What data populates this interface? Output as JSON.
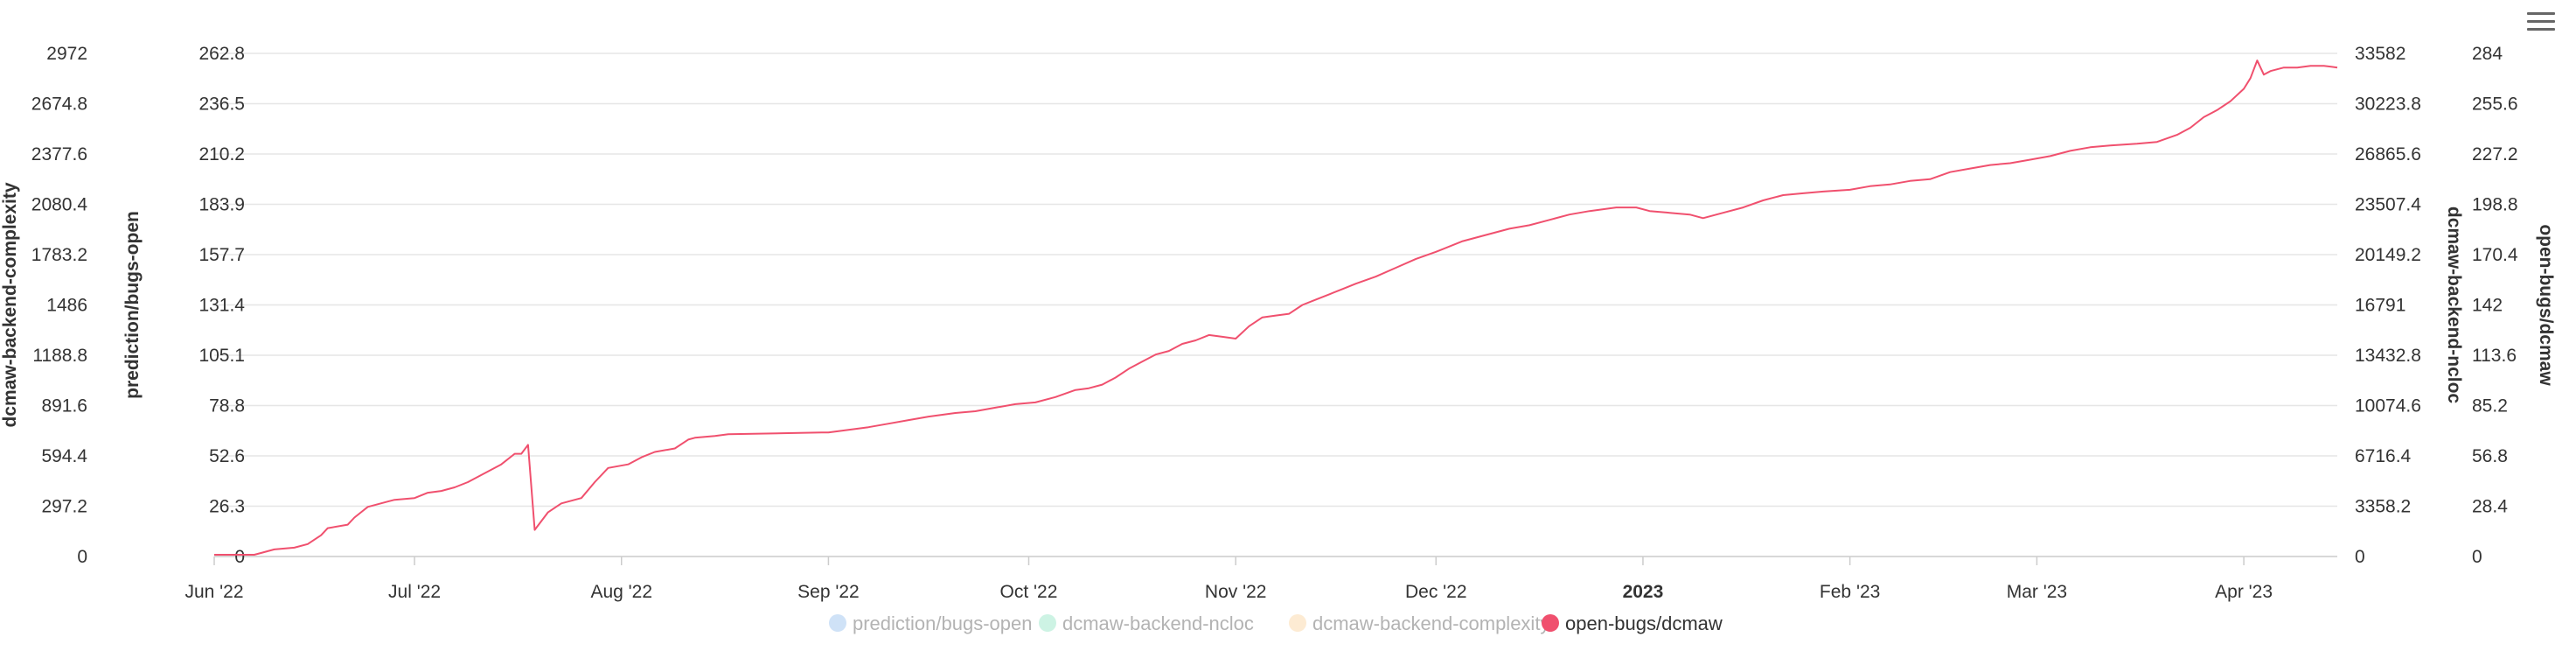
{
  "menu": {
    "icon": "hamburger-menu-icon"
  },
  "chart_data": {
    "type": "line",
    "title": "",
    "x_ticks": [
      "Jun '22",
      "Jul '22",
      "Aug '22",
      "Sep '22",
      "Oct '22",
      "Nov '22",
      "Dec '22",
      "2023",
      "Feb '23",
      "Mar '23",
      "Apr '23"
    ],
    "x_tick_bold": [
      false,
      false,
      false,
      false,
      false,
      false,
      false,
      true,
      false,
      false,
      false
    ],
    "xlim": [
      "2022-06-01",
      "2023-04-15"
    ],
    "grid": true,
    "legend_position": "bottom-center",
    "y_axes": [
      {
        "title": "dcmaw-backend-complexity",
        "ticks": [
          "0",
          "297.2",
          "594.4",
          "891.6",
          "1188.8",
          "1486",
          "1783.2",
          "2080.4",
          "2377.6",
          "2674.8",
          "2972"
        ],
        "ylim": [
          0,
          2972
        ],
        "side": "left"
      },
      {
        "title": "prediction/bugs-open",
        "ticks": [
          "0",
          "26.3",
          "52.6",
          "78.8",
          "105.1",
          "131.4",
          "157.7",
          "183.9",
          "210.2",
          "236.5",
          "262.8"
        ],
        "ylim": [
          0,
          262.8
        ],
        "side": "left"
      },
      {
        "title": "dcmaw-backend-ncloc",
        "ticks": [
          "0",
          "3358.2",
          "6716.4",
          "10074.6",
          "13432.8",
          "16791",
          "20149.2",
          "23507.4",
          "26865.6",
          "30223.8",
          "33582"
        ],
        "ylim": [
          0,
          33582
        ],
        "side": "right"
      },
      {
        "title": "open-bugs/dcmaw",
        "ticks": [
          "0",
          "28.4",
          "56.8",
          "85.2",
          "113.6",
          "142",
          "170.4",
          "198.8",
          "227.2",
          "255.6",
          "284"
        ],
        "ylim": [
          0,
          284
        ],
        "side": "right"
      }
    ],
    "series": [
      {
        "name": "prediction/bugs-open",
        "color": "#cfe2f7",
        "visible": false,
        "values": []
      },
      {
        "name": "dcmaw-backend-ncloc",
        "color": "#cdf3e4",
        "visible": false,
        "values": []
      },
      {
        "name": "dcmaw-backend-complexity",
        "color": "#fdebd3",
        "visible": false,
        "values": []
      },
      {
        "name": "open-bugs/dcmaw",
        "color": "#f0506e",
        "visible": true,
        "y_axis": 3,
        "values": [
          [
            "2022-06-01",
            1
          ],
          [
            "2022-06-07",
            1
          ],
          [
            "2022-06-08",
            2
          ],
          [
            "2022-06-10",
            4
          ],
          [
            "2022-06-13",
            5
          ],
          [
            "2022-06-15",
            7
          ],
          [
            "2022-06-17",
            12
          ],
          [
            "2022-06-18",
            16
          ],
          [
            "2022-06-21",
            18
          ],
          [
            "2022-06-22",
            22
          ],
          [
            "2022-06-23",
            25
          ],
          [
            "2022-06-24",
            28
          ],
          [
            "2022-06-27",
            31
          ],
          [
            "2022-06-28",
            32
          ],
          [
            "2022-07-01",
            33
          ],
          [
            "2022-07-03",
            36
          ],
          [
            "2022-07-05",
            37
          ],
          [
            "2022-07-07",
            39
          ],
          [
            "2022-07-09",
            42
          ],
          [
            "2022-07-11",
            46
          ],
          [
            "2022-07-14",
            52
          ],
          [
            "2022-07-16",
            58
          ],
          [
            "2022-07-17",
            58
          ],
          [
            "2022-07-18",
            63
          ],
          [
            "2022-07-19",
            15
          ],
          [
            "2022-07-21",
            25
          ],
          [
            "2022-07-23",
            30
          ],
          [
            "2022-07-26",
            33
          ],
          [
            "2022-07-28",
            42
          ],
          [
            "2022-07-30",
            50
          ],
          [
            "2022-08-02",
            52
          ],
          [
            "2022-08-04",
            56
          ],
          [
            "2022-08-06",
            59
          ],
          [
            "2022-08-09",
            61
          ],
          [
            "2022-08-11",
            66
          ],
          [
            "2022-08-12",
            67
          ],
          [
            "2022-08-15",
            68
          ],
          [
            "2022-08-17",
            69
          ],
          [
            "2022-08-31",
            70
          ],
          [
            "2022-09-01",
            70
          ],
          [
            "2022-09-03",
            71
          ],
          [
            "2022-09-07",
            73
          ],
          [
            "2022-09-10",
            75
          ],
          [
            "2022-09-13",
            77
          ],
          [
            "2022-09-16",
            79
          ],
          [
            "2022-09-20",
            81
          ],
          [
            "2022-09-23",
            82
          ],
          [
            "2022-09-26",
            84
          ],
          [
            "2022-09-29",
            86
          ],
          [
            "2022-10-02",
            87
          ],
          [
            "2022-10-05",
            90
          ],
          [
            "2022-10-08",
            94
          ],
          [
            "2022-10-10",
            95
          ],
          [
            "2022-10-12",
            97
          ],
          [
            "2022-10-14",
            101
          ],
          [
            "2022-10-16",
            106
          ],
          [
            "2022-10-18",
            110
          ],
          [
            "2022-10-20",
            114
          ],
          [
            "2022-10-22",
            116
          ],
          [
            "2022-10-24",
            120
          ],
          [
            "2022-10-26",
            122
          ],
          [
            "2022-10-28",
            125
          ],
          [
            "2022-10-30",
            124
          ],
          [
            "2022-11-01",
            123
          ],
          [
            "2022-11-03",
            130
          ],
          [
            "2022-11-05",
            135
          ],
          [
            "2022-11-07",
            136
          ],
          [
            "2022-11-09",
            137
          ],
          [
            "2022-11-11",
            142
          ],
          [
            "2022-11-13",
            145
          ],
          [
            "2022-11-15",
            148
          ],
          [
            "2022-11-17",
            151
          ],
          [
            "2022-11-19",
            154
          ],
          [
            "2022-11-22",
            158
          ],
          [
            "2022-11-25",
            163
          ],
          [
            "2022-11-28",
            168
          ],
          [
            "2022-12-01",
            172
          ],
          [
            "2022-12-05",
            178
          ],
          [
            "2022-12-08",
            181
          ],
          [
            "2022-12-12",
            185
          ],
          [
            "2022-12-15",
            187
          ],
          [
            "2022-12-18",
            190
          ],
          [
            "2022-12-21",
            193
          ],
          [
            "2022-12-24",
            195
          ],
          [
            "2022-12-28",
            197
          ],
          [
            "2022-12-31",
            197
          ],
          [
            "2023-01-02",
            195
          ],
          [
            "2023-01-05",
            194
          ],
          [
            "2023-01-08",
            193
          ],
          [
            "2023-01-10",
            191
          ],
          [
            "2023-01-13",
            194
          ],
          [
            "2023-01-16",
            197
          ],
          [
            "2023-01-19",
            201
          ],
          [
            "2023-01-22",
            204
          ],
          [
            "2023-01-25",
            205
          ],
          [
            "2023-01-28",
            206
          ],
          [
            "2023-02-01",
            207
          ],
          [
            "2023-02-04",
            209
          ],
          [
            "2023-02-07",
            210
          ],
          [
            "2023-02-10",
            212
          ],
          [
            "2023-02-13",
            213
          ],
          [
            "2023-02-16",
            217
          ],
          [
            "2023-02-19",
            219
          ],
          [
            "2023-02-22",
            221
          ],
          [
            "2023-02-25",
            222
          ],
          [
            "2023-02-28",
            224
          ],
          [
            "2023-03-03",
            226
          ],
          [
            "2023-03-06",
            229
          ],
          [
            "2023-03-09",
            231
          ],
          [
            "2023-03-12",
            232
          ],
          [
            "2023-03-16",
            233
          ],
          [
            "2023-03-19",
            234
          ],
          [
            "2023-03-22",
            238
          ],
          [
            "2023-03-24",
            242
          ],
          [
            "2023-03-26",
            248
          ],
          [
            "2023-03-28",
            252
          ],
          [
            "2023-03-30",
            257
          ],
          [
            "2023-04-01",
            264
          ],
          [
            "2023-04-02",
            270
          ],
          [
            "2023-04-03",
            280
          ],
          [
            "2023-04-04",
            272
          ],
          [
            "2023-04-05",
            274
          ],
          [
            "2023-04-07",
            276
          ],
          [
            "2023-04-09",
            276
          ],
          [
            "2023-04-11",
            277
          ],
          [
            "2023-04-13",
            277
          ],
          [
            "2023-04-15",
            276
          ]
        ]
      }
    ]
  }
}
